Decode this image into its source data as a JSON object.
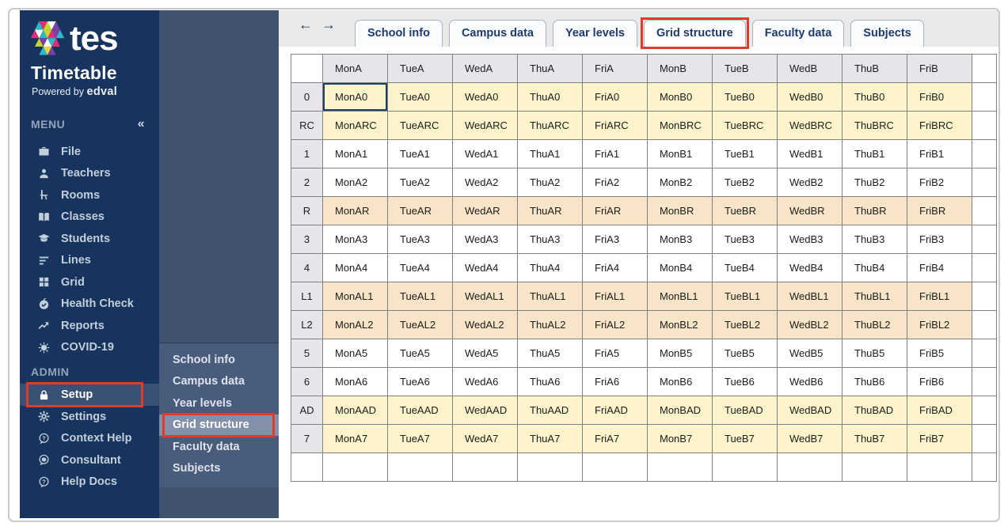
{
  "logo": {
    "brand": "tes",
    "product": "Timetable",
    "powered_prefix": "Powered by",
    "powered_brand": "edval"
  },
  "sidebar": {
    "menu_header": "MENU",
    "collapse_icon": "«",
    "menu_items": [
      {
        "label": "File",
        "icon": "briefcase-icon"
      },
      {
        "label": "Teachers",
        "icon": "person-icon"
      },
      {
        "label": "Rooms",
        "icon": "desk-icon"
      },
      {
        "label": "Classes",
        "icon": "open-book-icon"
      },
      {
        "label": "Students",
        "icon": "graduation-cap-icon"
      },
      {
        "label": "Lines",
        "icon": "lines-icon"
      },
      {
        "label": "Grid",
        "icon": "grid-icon"
      },
      {
        "label": "Health Check",
        "icon": "health-check-icon"
      },
      {
        "label": "Reports",
        "icon": "trend-chart-icon"
      },
      {
        "label": "COVID-19",
        "icon": "virus-icon"
      }
    ],
    "admin_header": "ADMIN",
    "admin_items": [
      {
        "label": "Setup",
        "icon": "lock-icon",
        "selected": true,
        "annotated": true
      },
      {
        "label": "Settings",
        "icon": "gear-icon"
      },
      {
        "label": "Context Help",
        "icon": "question-bubble-icon"
      },
      {
        "label": "Consultant",
        "icon": "brain-bubble-icon"
      },
      {
        "label": "Help Docs",
        "icon": "question-bubble-icon"
      }
    ]
  },
  "submenu": {
    "items": [
      {
        "label": "School info"
      },
      {
        "label": "Campus data"
      },
      {
        "label": "Year levels"
      },
      {
        "label": "Grid structure",
        "selected": true,
        "annotated": true
      },
      {
        "label": "Faculty data"
      },
      {
        "label": "Subjects"
      }
    ]
  },
  "tabbar": {
    "back_icon": "←",
    "forward_icon": "→",
    "tabs": [
      {
        "label": "School info"
      },
      {
        "label": "Campus data"
      },
      {
        "label": "Year levels"
      },
      {
        "label": "Grid structure",
        "active": true,
        "annotated": true
      },
      {
        "label": "Faculty data"
      },
      {
        "label": "Subjects"
      }
    ]
  },
  "table": {
    "column_headers": [
      "MonA",
      "TueA",
      "WedA",
      "ThuA",
      "FriA",
      "MonB",
      "TueB",
      "WedB",
      "ThuB",
      "FriB"
    ],
    "selected_cell": {
      "row_label": "0",
      "column": "MonA",
      "value": "MonA0"
    },
    "rows": [
      {
        "label": "0",
        "style": "yellow",
        "cells": [
          "MonA0",
          "TueA0",
          "WedA0",
          "ThuA0",
          "FriA0",
          "MonB0",
          "TueB0",
          "WedB0",
          "ThuB0",
          "FriB0"
        ]
      },
      {
        "label": "RC",
        "style": "yellow",
        "cells": [
          "MonARC",
          "TueARC",
          "WedARC",
          "ThuARC",
          "FriARC",
          "MonBRC",
          "TueBRC",
          "WedBRC",
          "ThuBRC",
          "FriBRC"
        ]
      },
      {
        "label": "1",
        "style": "white",
        "cells": [
          "MonA1",
          "TueA1",
          "WedA1",
          "ThuA1",
          "FriA1",
          "MonB1",
          "TueB1",
          "WedB1",
          "ThuB1",
          "FriB1"
        ]
      },
      {
        "label": "2",
        "style": "white",
        "cells": [
          "MonA2",
          "TueA2",
          "WedA2",
          "ThuA2",
          "FriA2",
          "MonB2",
          "TueB2",
          "WedB2",
          "ThuB2",
          "FriB2"
        ]
      },
      {
        "label": "R",
        "style": "peach",
        "cells": [
          "MonAR",
          "TueAR",
          "WedAR",
          "ThuAR",
          "FriAR",
          "MonBR",
          "TueBR",
          "WedBR",
          "ThuBR",
          "FriBR"
        ]
      },
      {
        "label": "3",
        "style": "white",
        "cells": [
          "MonA3",
          "TueA3",
          "WedA3",
          "ThuA3",
          "FriA3",
          "MonB3",
          "TueB3",
          "WedB3",
          "ThuB3",
          "FriB3"
        ]
      },
      {
        "label": "4",
        "style": "white",
        "cells": [
          "MonA4",
          "TueA4",
          "WedA4",
          "ThuA4",
          "FriA4",
          "MonB4",
          "TueB4",
          "WedB4",
          "ThuB4",
          "FriB4"
        ]
      },
      {
        "label": "L1",
        "style": "peach",
        "cells": [
          "MonAL1",
          "TueAL1",
          "WedAL1",
          "ThuAL1",
          "FriAL1",
          "MonBL1",
          "TueBL1",
          "WedBL1",
          "ThuBL1",
          "FriBL1"
        ]
      },
      {
        "label": "L2",
        "style": "peach",
        "cells": [
          "MonAL2",
          "TueAL2",
          "WedAL2",
          "ThuAL2",
          "FriAL2",
          "MonBL2",
          "TueBL2",
          "WedBL2",
          "ThuBL2",
          "FriBL2"
        ]
      },
      {
        "label": "5",
        "style": "white",
        "cells": [
          "MonA5",
          "TueA5",
          "WedA5",
          "ThuA5",
          "FriA5",
          "MonB5",
          "TueB5",
          "WedB5",
          "ThuB5",
          "FriB5"
        ]
      },
      {
        "label": "6",
        "style": "white",
        "cells": [
          "MonA6",
          "TueA6",
          "WedA6",
          "ThuA6",
          "FriA6",
          "MonB6",
          "TueB6",
          "WedB6",
          "ThuB6",
          "FriB6"
        ]
      },
      {
        "label": "AD",
        "style": "yellow",
        "cells": [
          "MonAAD",
          "TueAAD",
          "WedAAD",
          "ThuAAD",
          "FriAAD",
          "MonBAD",
          "TueBAD",
          "WedBAD",
          "ThuBAD",
          "FriBAD"
        ]
      },
      {
        "label": "7",
        "style": "yellow",
        "cells": [
          "MonA7",
          "TueA7",
          "WedA7",
          "ThuA7",
          "FriA7",
          "MonB7",
          "TueB7",
          "WedB7",
          "ThuB7",
          "FriB7"
        ]
      },
      {
        "label": "",
        "style": "white",
        "cells": [
          "",
          "",
          "",
          "",
          "",
          "",
          "",
          "",
          "",
          ""
        ]
      }
    ]
  },
  "colors": {
    "sidebar_bg": "#17345e",
    "submenu_bg": "#40526e",
    "submenu_popup_bg": "#495c7c",
    "submenu_highlight_bg": "#8290a9",
    "admin_selected_bg": "#3a5176",
    "tab_band_bg": "#e9e9e9",
    "tab_text": "#1d3a6e",
    "row_yellow": "#fdf4cc",
    "row_peach": "#f8e5c8",
    "header_gray": "#e4e6ea",
    "annotation_red": "#e43a2c"
  }
}
